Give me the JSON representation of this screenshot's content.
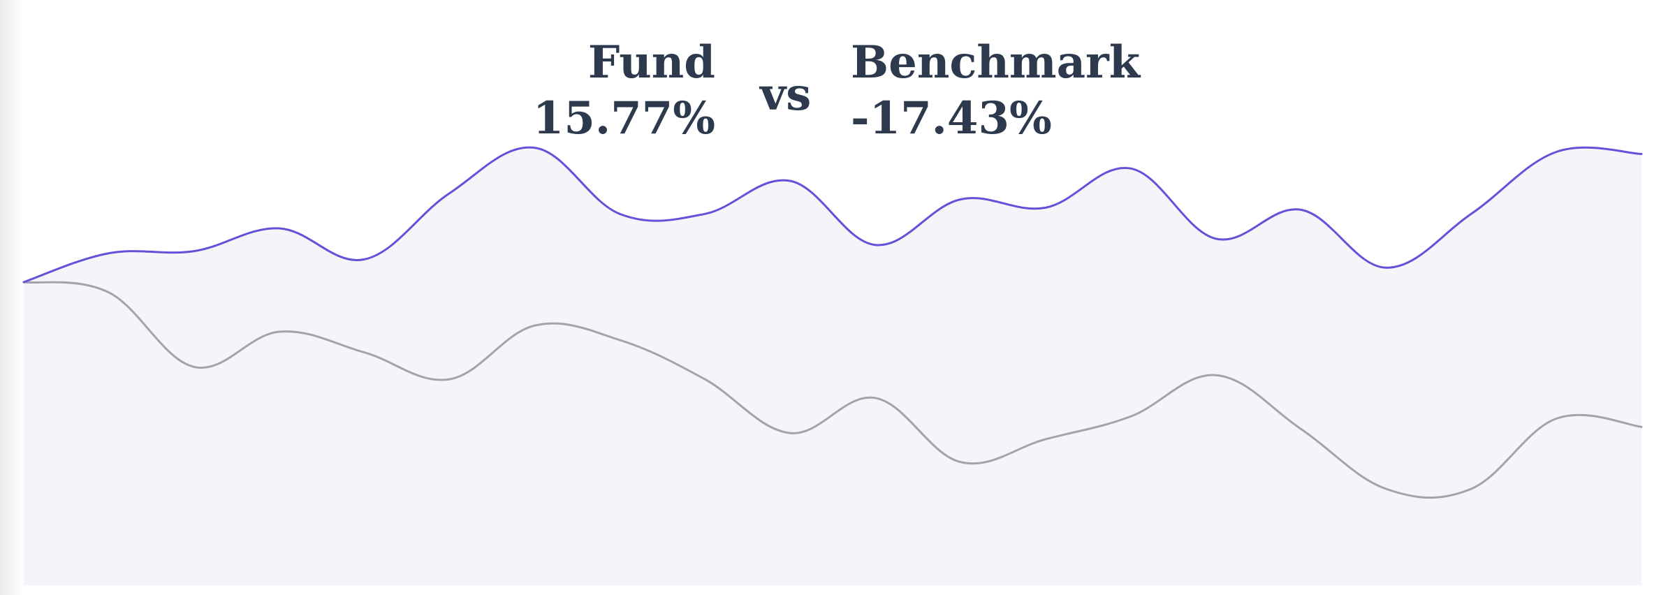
{
  "header": {
    "fund_name": "Fund",
    "fund_return": "15.77%",
    "vs": "vs",
    "benchmark_name": "Benchmark",
    "benchmark_return": "-17.43%"
  },
  "colors": {
    "fund_line": "#6152d9",
    "benchmark_line": "#a3a3ab",
    "area_fill": "#f4f4f9"
  },
  "chart_data": {
    "type": "line",
    "axes_visible": false,
    "grid": false,
    "ylim": [
      -1.7,
      1.0
    ],
    "series": [
      {
        "name": "Fund",
        "values": [
          0.0,
          0.14,
          0.15,
          0.26,
          0.11,
          0.43,
          0.65,
          0.33,
          0.33,
          0.49,
          0.18,
          0.4,
          0.36,
          0.55,
          0.21,
          0.35,
          0.07,
          0.33,
          0.63,
          0.62
        ]
      },
      {
        "name": "Benchmark",
        "values": [
          0.0,
          -0.05,
          -0.41,
          -0.24,
          -0.34,
          -0.47,
          -0.21,
          -0.28,
          -0.47,
          -0.73,
          -0.56,
          -0.87,
          -0.76,
          -0.65,
          -0.45,
          -0.71,
          -1.0,
          -1.0,
          -0.66,
          -0.7
        ]
      }
    ]
  }
}
